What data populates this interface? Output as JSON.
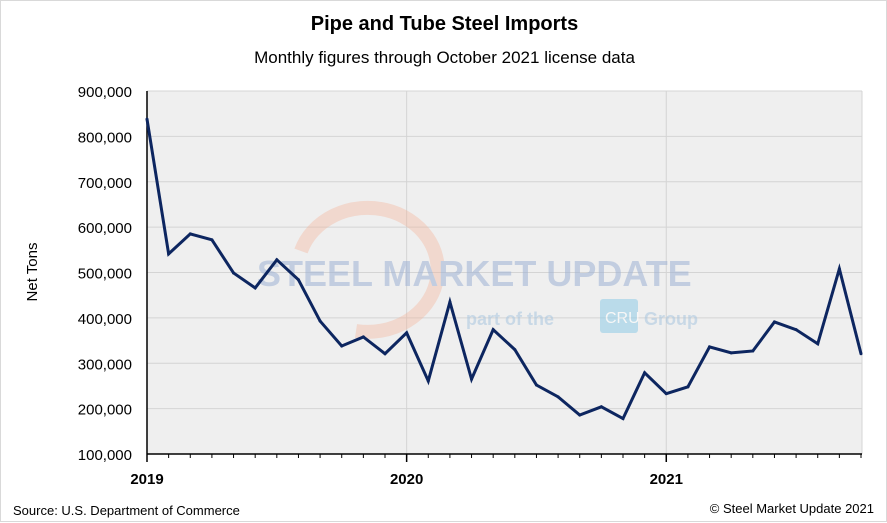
{
  "chart_data": {
    "type": "line",
    "title": "Pipe and Tube Steel Imports",
    "subtitle": "Monthly figures through October 2021 license data",
    "ylabel": "Net Tons",
    "xlabel": "",
    "ylim": [
      100000,
      900000
    ],
    "yticks": [
      "100,000",
      "200,000",
      "300,000",
      "400,000",
      "500,000",
      "600,000",
      "700,000",
      "800,000",
      "900,000"
    ],
    "xtick_labels": [
      "2019",
      "2020",
      "2021"
    ],
    "grid": true,
    "x": [
      "2019-01",
      "2019-02",
      "2019-03",
      "2019-04",
      "2019-05",
      "2019-06",
      "2019-07",
      "2019-08",
      "2019-09",
      "2019-10",
      "2019-11",
      "2019-12",
      "2020-01",
      "2020-02",
      "2020-03",
      "2020-04",
      "2020-05",
      "2020-06",
      "2020-07",
      "2020-08",
      "2020-09",
      "2020-10",
      "2020-11",
      "2020-12",
      "2021-01",
      "2021-02",
      "2021-03",
      "2021-04",
      "2021-05",
      "2021-06",
      "2021-07",
      "2021-08",
      "2021-09",
      "2021-10"
    ],
    "series": [
      {
        "color": "#0d2660",
        "values": [
          838000,
          541000,
          585000,
          572000,
          499000,
          466000,
          528000,
          484000,
          393000,
          338000,
          358000,
          321000,
          367000,
          261000,
          435000,
          265000,
          374000,
          330000,
          252000,
          226000,
          186000,
          204000,
          178000,
          279000,
          233000,
          248000,
          336000,
          323000,
          327000,
          391000,
          374000,
          343000,
          508000,
          321000
        ]
      }
    ]
  },
  "watermark": {
    "brand": "STEEL MARKET UPDATE",
    "tagline_pre": "part of the",
    "tagline_logo": "CRU",
    "tagline_post": "Group"
  },
  "footer": {
    "source": "Source: U.S. Department of Commerce",
    "copyright": "© Steel Market Update 2021"
  },
  "colors": {
    "plot_bg": "#efefef",
    "grid": "#d4d4d4",
    "line": "#0d2660"
  }
}
